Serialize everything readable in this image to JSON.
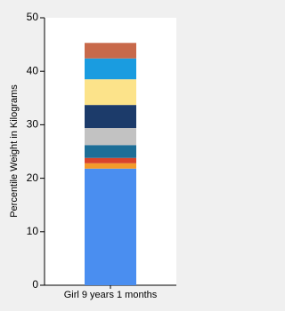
{
  "chart_data": {
    "type": "stacked-bar",
    "y_label": "Percentile Weight in Kilograms",
    "categories": [
      "Girl 9 years 1 months"
    ],
    "series": [
      {
        "color": "#4a8ef0",
        "values": [
          21.8
        ]
      },
      {
        "color": "#f39a2a",
        "values": [
          1.0
        ]
      },
      {
        "color": "#d9432a",
        "values": [
          1.0
        ]
      },
      {
        "color": "#1d6e97",
        "values": [
          2.4
        ]
      },
      {
        "color": "#c2c2c2",
        "values": [
          3.2
        ]
      },
      {
        "color": "#1c3b6a",
        "values": [
          4.3
        ]
      },
      {
        "color": "#fce38a",
        "values": [
          4.8
        ]
      },
      {
        "color": "#1a9ce0",
        "values": [
          3.9
        ]
      },
      {
        "color": "#c8694a",
        "values": [
          2.9
        ]
      }
    ],
    "ylim": [
      0,
      50
    ],
    "yticks": [
      0,
      10,
      20,
      30,
      40,
      50
    ]
  }
}
